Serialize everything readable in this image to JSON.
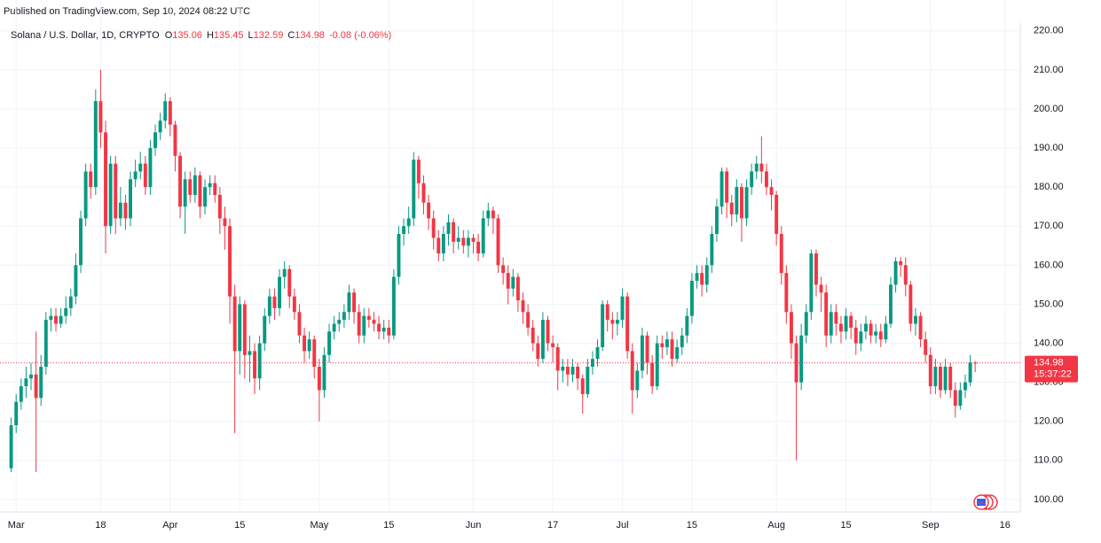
{
  "header": {
    "published": "Published on TradingView.com, Sep 10, 2024 08:22 UTC"
  },
  "chart_data": {
    "type": "candlestick",
    "title": "Solana / U.S. Dollar, 1D, CRYPTO",
    "legend_labels": [
      "O",
      "H",
      "L",
      "C"
    ],
    "change": "-0.08 (-0.06%)",
    "countdown": "15:37:22",
    "up_color": "#089981",
    "down_color": "#f23645",
    "grid": true,
    "x": [
      "2024-02-29",
      "2024-03-01",
      "2024-03-02",
      "2024-03-03",
      "2024-03-04",
      "2024-03-05",
      "2024-03-06",
      "2024-03-07",
      "2024-03-08",
      "2024-03-09",
      "2024-03-10",
      "2024-03-11",
      "2024-03-12",
      "2024-03-13",
      "2024-03-14",
      "2024-03-15",
      "2024-03-16",
      "2024-03-17",
      "2024-03-18",
      "2024-03-19",
      "2024-03-20",
      "2024-03-21",
      "2024-03-22",
      "2024-03-23",
      "2024-03-24",
      "2024-03-25",
      "2024-03-26",
      "2024-03-27",
      "2024-03-28",
      "2024-03-29",
      "2024-03-30",
      "2024-03-31",
      "2024-04-01",
      "2024-04-02",
      "2024-04-03",
      "2024-04-04",
      "2024-04-05",
      "2024-04-06",
      "2024-04-07",
      "2024-04-08",
      "2024-04-09",
      "2024-04-10",
      "2024-04-11",
      "2024-04-12",
      "2024-04-13",
      "2024-04-14",
      "2024-04-15",
      "2024-04-16",
      "2024-04-17",
      "2024-04-18",
      "2024-04-19",
      "2024-04-20",
      "2024-04-21",
      "2024-04-22",
      "2024-04-23",
      "2024-04-24",
      "2024-04-25",
      "2024-04-26",
      "2024-04-27",
      "2024-04-28",
      "2024-04-29",
      "2024-04-30",
      "2024-05-01",
      "2024-05-02",
      "2024-05-03",
      "2024-05-04",
      "2024-05-05",
      "2024-05-06",
      "2024-05-07",
      "2024-05-08",
      "2024-05-09",
      "2024-05-10",
      "2024-05-11",
      "2024-05-12",
      "2024-05-13",
      "2024-05-14",
      "2024-05-15",
      "2024-05-16",
      "2024-05-17",
      "2024-05-18",
      "2024-05-19",
      "2024-05-20",
      "2024-05-21",
      "2024-05-22",
      "2024-05-23",
      "2024-05-24",
      "2024-05-25",
      "2024-05-26",
      "2024-05-27",
      "2024-05-28",
      "2024-05-29",
      "2024-05-30",
      "2024-05-31",
      "2024-06-01",
      "2024-06-02",
      "2024-06-03",
      "2024-06-04",
      "2024-06-05",
      "2024-06-06",
      "2024-06-07",
      "2024-06-08",
      "2024-06-09",
      "2024-06-10",
      "2024-06-11",
      "2024-06-12",
      "2024-06-13",
      "2024-06-14",
      "2024-06-15",
      "2024-06-16",
      "2024-06-17",
      "2024-06-18",
      "2024-06-19",
      "2024-06-20",
      "2024-06-21",
      "2024-06-22",
      "2024-06-23",
      "2024-06-24",
      "2024-06-25",
      "2024-06-26",
      "2024-06-27",
      "2024-06-28",
      "2024-06-29",
      "2024-06-30",
      "2024-07-01",
      "2024-07-02",
      "2024-07-03",
      "2024-07-04",
      "2024-07-05",
      "2024-07-06",
      "2024-07-07",
      "2024-07-08",
      "2024-07-09",
      "2024-07-10",
      "2024-07-11",
      "2024-07-12",
      "2024-07-13",
      "2024-07-14",
      "2024-07-15",
      "2024-07-16",
      "2024-07-17",
      "2024-07-18",
      "2024-07-19",
      "2024-07-20",
      "2024-07-21",
      "2024-07-22",
      "2024-07-23",
      "2024-07-24",
      "2024-07-25",
      "2024-07-26",
      "2024-07-27",
      "2024-07-28",
      "2024-07-29",
      "2024-07-30",
      "2024-07-31",
      "2024-08-01",
      "2024-08-02",
      "2024-08-03",
      "2024-08-04",
      "2024-08-05",
      "2024-08-06",
      "2024-08-07",
      "2024-08-08",
      "2024-08-09",
      "2024-08-10",
      "2024-08-11",
      "2024-08-12",
      "2024-08-13",
      "2024-08-14",
      "2024-08-15",
      "2024-08-16",
      "2024-08-17",
      "2024-08-18",
      "2024-08-19",
      "2024-08-20",
      "2024-08-21",
      "2024-08-22",
      "2024-08-23",
      "2024-08-24",
      "2024-08-25",
      "2024-08-26",
      "2024-08-27",
      "2024-08-28",
      "2024-08-29",
      "2024-08-30",
      "2024-08-31",
      "2024-09-01",
      "2024-09-02",
      "2024-09-03",
      "2024-09-04",
      "2024-09-05",
      "2024-09-06",
      "2024-09-07",
      "2024-09-08",
      "2024-09-09",
      "2024-09-10"
    ],
    "ohlc": [
      [
        108,
        121,
        107,
        119
      ],
      [
        119,
        127,
        117,
        125
      ],
      [
        125,
        131,
        123,
        129
      ],
      [
        129,
        134,
        126,
        131
      ],
      [
        131,
        135,
        128,
        132
      ],
      [
        132,
        143,
        107,
        126
      ],
      [
        126,
        137,
        124,
        134
      ],
      [
        134,
        148,
        132,
        146
      ],
      [
        146,
        149,
        143,
        147
      ],
      [
        147,
        149,
        143,
        145
      ],
      [
        145,
        149,
        144,
        147
      ],
      [
        147,
        152,
        145,
        149
      ],
      [
        149,
        154,
        147,
        152
      ],
      [
        152,
        163,
        150,
        160
      ],
      [
        160,
        174,
        158,
        172
      ],
      [
        172,
        186,
        170,
        184
      ],
      [
        184,
        186,
        177,
        180
      ],
      [
        180,
        205,
        178,
        202
      ],
      [
        202,
        210,
        190,
        194
      ],
      [
        194,
        197,
        163,
        170
      ],
      [
        170,
        188,
        168,
        186
      ],
      [
        186,
        188,
        168,
        172
      ],
      [
        172,
        180,
        170,
        176
      ],
      [
        176,
        178,
        169,
        172
      ],
      [
        172,
        184,
        170,
        182
      ],
      [
        182,
        187,
        180,
        184
      ],
      [
        184,
        189,
        182,
        186
      ],
      [
        186,
        188,
        178,
        180
      ],
      [
        180,
        192,
        178,
        190
      ],
      [
        190,
        196,
        188,
        194
      ],
      [
        194,
        199,
        192,
        197
      ],
      [
        197,
        204,
        195,
        202
      ],
      [
        202,
        203,
        193,
        196
      ],
      [
        196,
        197,
        184,
        188
      ],
      [
        188,
        189,
        172,
        175
      ],
      [
        175,
        184,
        168,
        182
      ],
      [
        182,
        184,
        176,
        178
      ],
      [
        178,
        185,
        176,
        183
      ],
      [
        183,
        184,
        172,
        175
      ],
      [
        175,
        182,
        173,
        180
      ],
      [
        180,
        183,
        178,
        181
      ],
      [
        181,
        183,
        176,
        178
      ],
      [
        178,
        180,
        168,
        172
      ],
      [
        172,
        175,
        164,
        170
      ],
      [
        170,
        172,
        145,
        152
      ],
      [
        152,
        155,
        117,
        138
      ],
      [
        138,
        152,
        132,
        150
      ],
      [
        150,
        151,
        131,
        137
      ],
      [
        137,
        142,
        130,
        138
      ],
      [
        138,
        140,
        127,
        131
      ],
      [
        131,
        142,
        128,
        140
      ],
      [
        140,
        149,
        138,
        147
      ],
      [
        147,
        154,
        145,
        152
      ],
      [
        152,
        154,
        146,
        149
      ],
      [
        149,
        159,
        147,
        157
      ],
      [
        157,
        161,
        154,
        159
      ],
      [
        159,
        160,
        149,
        152
      ],
      [
        152,
        154,
        146,
        148
      ],
      [
        148,
        150,
        140,
        142
      ],
      [
        142,
        144,
        135,
        138
      ],
      [
        138,
        143,
        136,
        141
      ],
      [
        141,
        142,
        131,
        134
      ],
      [
        134,
        136,
        120,
        128
      ],
      [
        128,
        139,
        126,
        137
      ],
      [
        137,
        145,
        135,
        143
      ],
      [
        143,
        147,
        141,
        145
      ],
      [
        145,
        148,
        143,
        146
      ],
      [
        146,
        150,
        144,
        148
      ],
      [
        148,
        155,
        146,
        153
      ],
      [
        153,
        154,
        145,
        148
      ],
      [
        148,
        150,
        140,
        142
      ],
      [
        142,
        149,
        140,
        147
      ],
      [
        147,
        149,
        144,
        146
      ],
      [
        146,
        148,
        143,
        145
      ],
      [
        145,
        147,
        141,
        143
      ],
      [
        143,
        146,
        141,
        144
      ],
      [
        144,
        146,
        140,
        142
      ],
      [
        142,
        159,
        141,
        157
      ],
      [
        157,
        170,
        155,
        168
      ],
      [
        168,
        172,
        165,
        170
      ],
      [
        170,
        175,
        168,
        172
      ],
      [
        172,
        189,
        170,
        187
      ],
      [
        187,
        188,
        177,
        181
      ],
      [
        181,
        183,
        173,
        176
      ],
      [
        176,
        178,
        169,
        172
      ],
      [
        172,
        174,
        164,
        167
      ],
      [
        167,
        169,
        161,
        163
      ],
      [
        163,
        170,
        161,
        168
      ],
      [
        168,
        173,
        165,
        171
      ],
      [
        171,
        172,
        163,
        166
      ],
      [
        166,
        170,
        164,
        167
      ],
      [
        167,
        169,
        163,
        165
      ],
      [
        165,
        169,
        162,
        167
      ],
      [
        167,
        168,
        163,
        166
      ],
      [
        166,
        168,
        161,
        163
      ],
      [
        163,
        174,
        162,
        172
      ],
      [
        172,
        176,
        170,
        174
      ],
      [
        174,
        175,
        168,
        172
      ],
      [
        172,
        173,
        158,
        160
      ],
      [
        160,
        162,
        155,
        158
      ],
      [
        158,
        160,
        150,
        154
      ],
      [
        154,
        159,
        152,
        157
      ],
      [
        157,
        158,
        148,
        151
      ],
      [
        151,
        153,
        145,
        148
      ],
      [
        148,
        150,
        142,
        144
      ],
      [
        144,
        146,
        138,
        140
      ],
      [
        140,
        142,
        134,
        136
      ],
      [
        136,
        148,
        135,
        146
      ],
      [
        146,
        147,
        138,
        140
      ],
      [
        140,
        142,
        135,
        139
      ],
      [
        139,
        140,
        128,
        133
      ],
      [
        133,
        136,
        130,
        134
      ],
      [
        134,
        136,
        129,
        132
      ],
      [
        132,
        136,
        130,
        134
      ],
      [
        134,
        135,
        128,
        131
      ],
      [
        131,
        132,
        122,
        127
      ],
      [
        127,
        136,
        126,
        134
      ],
      [
        134,
        138,
        132,
        136
      ],
      [
        136,
        141,
        134,
        139
      ],
      [
        139,
        151,
        138,
        150
      ],
      [
        150,
        151,
        143,
        146
      ],
      [
        146,
        148,
        141,
        145
      ],
      [
        145,
        148,
        142,
        146
      ],
      [
        146,
        154,
        144,
        152
      ],
      [
        152,
        153,
        136,
        138
      ],
      [
        138,
        140,
        122,
        128
      ],
      [
        128,
        135,
        126,
        133
      ],
      [
        133,
        144,
        131,
        142
      ],
      [
        142,
        143,
        132,
        135
      ],
      [
        135,
        137,
        127,
        129
      ],
      [
        129,
        142,
        128,
        140
      ],
      [
        140,
        142,
        136,
        139
      ],
      [
        139,
        143,
        137,
        141
      ],
      [
        141,
        143,
        134,
        136
      ],
      [
        136,
        141,
        135,
        139
      ],
      [
        139,
        144,
        137,
        142
      ],
      [
        142,
        149,
        140,
        147
      ],
      [
        147,
        158,
        145,
        156
      ],
      [
        156,
        160,
        154,
        158
      ],
      [
        158,
        160,
        152,
        155
      ],
      [
        155,
        162,
        153,
        160
      ],
      [
        160,
        170,
        158,
        168
      ],
      [
        168,
        177,
        166,
        175
      ],
      [
        175,
        185,
        173,
        184
      ],
      [
        184,
        185,
        172,
        176
      ],
      [
        176,
        178,
        170,
        173
      ],
      [
        173,
        182,
        171,
        180
      ],
      [
        180,
        181,
        166,
        172
      ],
      [
        172,
        182,
        170,
        180
      ],
      [
        180,
        186,
        178,
        184
      ],
      [
        184,
        188,
        182,
        186
      ],
      [
        186,
        193,
        181,
        184
      ],
      [
        184,
        186,
        178,
        180
      ],
      [
        180,
        182,
        174,
        178
      ],
      [
        178,
        179,
        165,
        168
      ],
      [
        168,
        170,
        155,
        158
      ],
      [
        158,
        160,
        145,
        148
      ],
      [
        148,
        150,
        136,
        140
      ],
      [
        140,
        142,
        110,
        130
      ],
      [
        130,
        145,
        128,
        142
      ],
      [
        142,
        150,
        140,
        148
      ],
      [
        148,
        164,
        146,
        163
      ],
      [
        163,
        164,
        152,
        155
      ],
      [
        155,
        157,
        148,
        153
      ],
      [
        153,
        155,
        139,
        142
      ],
      [
        142,
        150,
        140,
        148
      ],
      [
        148,
        150,
        142,
        145
      ],
      [
        145,
        147,
        140,
        143
      ],
      [
        143,
        149,
        141,
        147
      ],
      [
        147,
        148,
        141,
        144
      ],
      [
        144,
        146,
        137,
        140
      ],
      [
        140,
        145,
        138,
        143
      ],
      [
        143,
        147,
        141,
        145
      ],
      [
        145,
        146,
        140,
        142
      ],
      [
        142,
        145,
        140,
        143
      ],
      [
        143,
        145,
        139,
        141
      ],
      [
        141,
        147,
        140,
        145
      ],
      [
        145,
        157,
        144,
        155
      ],
      [
        155,
        162,
        153,
        161
      ],
      [
        161,
        162,
        157,
        160
      ],
      [
        160,
        162,
        152,
        155
      ],
      [
        155,
        156,
        143,
        145
      ],
      [
        145,
        149,
        142,
        147
      ],
      [
        147,
        148,
        139,
        141
      ],
      [
        141,
        143,
        135,
        137
      ],
      [
        137,
        139,
        127,
        129
      ],
      [
        129,
        136,
        127,
        134
      ],
      [
        134,
        135,
        126,
        128
      ],
      [
        128,
        136,
        127,
        134
      ],
      [
        134,
        135,
        126,
        128
      ],
      [
        128,
        130,
        121,
        124
      ],
      [
        124,
        130,
        123,
        128
      ],
      [
        128,
        132,
        126,
        130
      ],
      [
        130,
        137,
        129,
        135.06
      ],
      [
        135.06,
        135.45,
        132.59,
        134.98
      ]
    ],
    "xlim": [
      "2024-02-28",
      "2024-09-18"
    ],
    "xticks": [
      {
        "value": "2024-03-01",
        "label": "Mar"
      },
      {
        "value": "2024-03-18",
        "label": "18"
      },
      {
        "value": "2024-04-01",
        "label": "Apr"
      },
      {
        "value": "2024-04-15",
        "label": "15"
      },
      {
        "value": "2024-05-01",
        "label": "May"
      },
      {
        "value": "2024-05-15",
        "label": "15"
      },
      {
        "value": "2024-06-01",
        "label": "Jun"
      },
      {
        "value": "2024-06-17",
        "label": "17"
      },
      {
        "value": "2024-07-01",
        "label": "Jul"
      },
      {
        "value": "2024-07-15",
        "label": "15"
      },
      {
        "value": "2024-08-01",
        "label": "Aug"
      },
      {
        "value": "2024-08-15",
        "label": "15"
      },
      {
        "value": "2024-09-01",
        "label": "Sep"
      },
      {
        "value": "2024-09-16",
        "label": "16"
      }
    ],
    "ylim": [
      96.8,
      227.9
    ],
    "yticks": [
      {
        "value": 100,
        "label": "100.00"
      },
      {
        "value": 110,
        "label": "110.00"
      },
      {
        "value": 120,
        "label": "120.00"
      },
      {
        "value": 130,
        "label": "130.00"
      },
      {
        "value": 140,
        "label": "140.00"
      },
      {
        "value": 150,
        "label": "150.00"
      },
      {
        "value": 160,
        "label": "160.00"
      },
      {
        "value": 170,
        "label": "170.00"
      },
      {
        "value": 180,
        "label": "180.00"
      },
      {
        "value": 190,
        "label": "190.00"
      },
      {
        "value": 200,
        "label": "200.00"
      },
      {
        "value": 210,
        "label": "210.00"
      },
      {
        "value": 220,
        "label": "220.00"
      }
    ]
  }
}
